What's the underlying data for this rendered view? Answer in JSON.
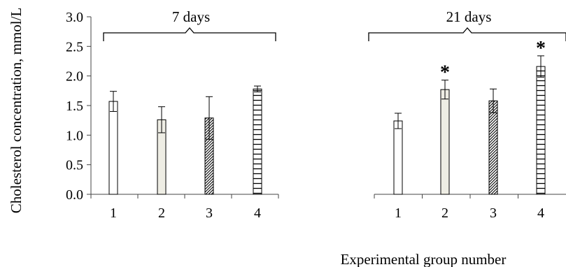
{
  "chart_data": {
    "type": "bar",
    "ylabel": "Cholesterol concentration, mmol/L",
    "xlabel": "Experimental group number",
    "ylim": [
      0,
      3
    ],
    "yticks": [
      "0.0",
      "0.5",
      "1.0",
      "1.5",
      "2.0",
      "2.5",
      "3.0"
    ],
    "grid": false,
    "panels": [
      {
        "title": "7 days",
        "categories": [
          "1",
          "2",
          "3",
          "4"
        ],
        "values": [
          1.57,
          1.26,
          1.29,
          1.78
        ],
        "errors": [
          0.17,
          0.22,
          0.36,
          0.05
        ],
        "significant": [
          false,
          false,
          false,
          false
        ]
      },
      {
        "title": "21 days",
        "categories": [
          "1",
          "2",
          "3",
          "4"
        ],
        "values": [
          1.24,
          1.77,
          1.58,
          2.16
        ],
        "errors": [
          0.13,
          0.16,
          0.2,
          0.18
        ],
        "significant": [
          false,
          true,
          false,
          true
        ]
      }
    ],
    "patterns": [
      "none",
      "light-gray fill",
      "diagonal hatch",
      "horizontal lines"
    ],
    "significance_marker": "*"
  }
}
